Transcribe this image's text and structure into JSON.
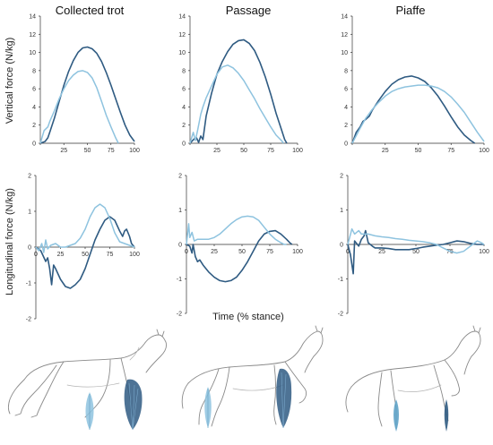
{
  "figure": {
    "columns": [
      "Collected trot",
      "Passage",
      "Piaffe"
    ],
    "xlabel": "Time (% stance)",
    "vertical_ylabel": "Vertical force (N/kg)",
    "longitudinal_ylabel": "Longitudinal force (N/kg)"
  },
  "colors": {
    "dark_series": "#2f5b82",
    "light_series": "#8ec3df"
  },
  "chart_data": [
    {
      "type": "line",
      "panel": "Collected trot",
      "ylabel": "Vertical force (N/kg)",
      "xlim": [
        0,
        100
      ],
      "ylim": [
        0,
        14
      ],
      "xticks": [
        0,
        25,
        50,
        75,
        100
      ],
      "yticks": [
        0,
        2,
        4,
        6,
        8,
        10,
        12,
        14
      ],
      "series": [
        {
          "color": "dark",
          "x": [
            0,
            5,
            8,
            10,
            15,
            20,
            25,
            30,
            35,
            40,
            45,
            50,
            55,
            60,
            65,
            70,
            75,
            80,
            85,
            90,
            95,
            100
          ],
          "y": [
            0,
            0.2,
            0.6,
            1.2,
            2.8,
            4.6,
            6.4,
            7.9,
            9.1,
            10.0,
            10.5,
            10.6,
            10.4,
            9.9,
            9.0,
            7.8,
            6.4,
            4.9,
            3.4,
            2.0,
            0.9,
            0.2
          ]
        },
        {
          "color": "light",
          "x": [
            0,
            4,
            8,
            10,
            15,
            20,
            25,
            30,
            35,
            40,
            45,
            50,
            55,
            60,
            65,
            70,
            75,
            80,
            83
          ],
          "y": [
            0,
            1.4,
            1.8,
            2.4,
            3.6,
            4.9,
            6.0,
            6.9,
            7.5,
            7.9,
            8.0,
            7.8,
            7.2,
            6.1,
            4.6,
            3.1,
            1.8,
            0.6,
            0
          ]
        }
      ]
    },
    {
      "type": "line",
      "panel": "Passage",
      "ylabel": "",
      "xlim": [
        0,
        100
      ],
      "ylim": [
        0,
        14
      ],
      "xticks": [
        0,
        25,
        50,
        75,
        100
      ],
      "yticks": [
        0,
        2,
        4,
        6,
        8,
        10,
        12,
        14
      ],
      "series": [
        {
          "color": "dark",
          "x": [
            0,
            4,
            6,
            8,
            10,
            12,
            15,
            20,
            25,
            30,
            35,
            40,
            45,
            50,
            55,
            60,
            65,
            70,
            75,
            80,
            85,
            88,
            90
          ],
          "y": [
            0,
            0.5,
            0.6,
            0.1,
            0.8,
            0.4,
            3.0,
            5.5,
            7.6,
            9.0,
            10.1,
            10.9,
            11.3,
            11.4,
            11.0,
            10.2,
            8.9,
            7.3,
            5.4,
            3.3,
            1.5,
            0.4,
            0
          ]
        },
        {
          "color": "light",
          "x": [
            0,
            3,
            5,
            7,
            10,
            12,
            15,
            20,
            25,
            30,
            35,
            40,
            45,
            50,
            55,
            60,
            65,
            70,
            75,
            80,
            85,
            87
          ],
          "y": [
            0,
            1.2,
            0.3,
            1.4,
            3.2,
            4.0,
            5.0,
            6.3,
            7.6,
            8.4,
            8.6,
            8.3,
            7.7,
            6.9,
            5.9,
            4.9,
            3.8,
            2.8,
            1.8,
            0.9,
            0.3,
            0
          ]
        }
      ]
    },
    {
      "type": "line",
      "panel": "Piaffe",
      "ylabel": "",
      "xlim": [
        0,
        100
      ],
      "ylim": [
        0,
        14
      ],
      "xticks": [
        0,
        25,
        50,
        75,
        100
      ],
      "yticks": [
        0,
        2,
        4,
        6,
        8,
        10,
        12,
        14
      ],
      "series": [
        {
          "color": "dark",
          "x": [
            0,
            3,
            6,
            8,
            10,
            13,
            15,
            20,
            25,
            30,
            35,
            40,
            45,
            50,
            55,
            60,
            65,
            70,
            75,
            80,
            85,
            90,
            93
          ],
          "y": [
            0,
            1.2,
            1.8,
            2.4,
            2.6,
            3.0,
            3.6,
            4.7,
            5.7,
            6.5,
            7.0,
            7.3,
            7.4,
            7.2,
            6.8,
            6.1,
            5.2,
            4.1,
            2.9,
            1.8,
            0.9,
            0.3,
            0
          ]
        },
        {
          "color": "light",
          "x": [
            0,
            5,
            10,
            15,
            20,
            25,
            30,
            35,
            40,
            45,
            50,
            55,
            60,
            65,
            70,
            75,
            80,
            85,
            90,
            95,
            100
          ],
          "y": [
            0,
            1.4,
            2.7,
            3.7,
            4.5,
            5.2,
            5.7,
            6.0,
            6.2,
            6.3,
            6.4,
            6.4,
            6.3,
            6.1,
            5.7,
            5.1,
            4.3,
            3.4,
            2.3,
            1.2,
            0.2
          ]
        }
      ]
    },
    {
      "type": "line",
      "panel": "Collected trot",
      "ylabel": "Longitudinal force (N/kg)",
      "xlim": [
        0,
        100
      ],
      "ylim": [
        -2,
        2
      ],
      "xticks": [
        0,
        25,
        50,
        75,
        100
      ],
      "yticks": [
        -2,
        -1,
        0,
        1,
        2
      ],
      "series": [
        {
          "color": "dark",
          "x": [
            0,
            5,
            10,
            12,
            14,
            16,
            18,
            20,
            25,
            30,
            35,
            40,
            45,
            50,
            55,
            60,
            65,
            70,
            75,
            80,
            85,
            88,
            90,
            92,
            95,
            97,
            100
          ],
          "y": [
            0,
            -0.1,
            -0.4,
            -0.3,
            -0.6,
            -1.05,
            -0.5,
            -0.6,
            -0.9,
            -1.1,
            -1.15,
            -1.05,
            -0.9,
            -0.6,
            -0.2,
            0.2,
            0.5,
            0.75,
            0.85,
            0.75,
            0.45,
            0.3,
            0.45,
            0.5,
            0.3,
            0.1,
            0
          ]
        },
        {
          "color": "light",
          "x": [
            0,
            3,
            6,
            8,
            10,
            12,
            15,
            20,
            25,
            30,
            35,
            40,
            45,
            50,
            55,
            60,
            65,
            70,
            75,
            80,
            85,
            90,
            95,
            100
          ],
          "y": [
            0,
            -0.1,
            0.1,
            -0.15,
            0.2,
            -0.05,
            0.05,
            0.1,
            0.0,
            0.0,
            0.05,
            0.1,
            0.25,
            0.5,
            0.85,
            1.1,
            1.2,
            1.1,
            0.8,
            0.4,
            0.15,
            0.1,
            0.05,
            0
          ]
        }
      ]
    },
    {
      "type": "line",
      "panel": "Passage",
      "ylabel": "",
      "xlim": [
        0,
        100
      ],
      "ylim": [
        -2,
        2
      ],
      "xticks": [
        0,
        25,
        50,
        75,
        100
      ],
      "yticks": [
        -2,
        -1,
        0,
        1,
        2
      ],
      "series": [
        {
          "color": "dark",
          "x": [
            0,
            3,
            5,
            6,
            8,
            10,
            12,
            15,
            20,
            25,
            30,
            35,
            40,
            45,
            50,
            55,
            60,
            65,
            70,
            75,
            80,
            85,
            90,
            93,
            95
          ],
          "y": [
            0,
            -0.05,
            -0.25,
            0.0,
            -0.35,
            -0.5,
            -0.45,
            -0.6,
            -0.8,
            -0.95,
            -1.05,
            -1.08,
            -1.05,
            -0.95,
            -0.75,
            -0.5,
            -0.2,
            0.1,
            0.3,
            0.38,
            0.4,
            0.3,
            0.15,
            0.05,
            0
          ]
        },
        {
          "color": "light",
          "x": [
            0,
            2,
            3,
            5,
            7,
            10,
            15,
            20,
            25,
            30,
            35,
            40,
            45,
            50,
            55,
            60,
            65,
            70,
            75,
            80,
            85,
            88,
            90
          ],
          "y": [
            0,
            0.6,
            0.2,
            0.35,
            0.1,
            0.15,
            0.15,
            0.15,
            0.2,
            0.3,
            0.45,
            0.6,
            0.72,
            0.8,
            0.82,
            0.8,
            0.7,
            0.5,
            0.3,
            0.15,
            0.05,
            0.0,
            0
          ]
        }
      ]
    },
    {
      "type": "line",
      "panel": "Piaffe",
      "ylabel": "",
      "xlim": [
        0,
        100
      ],
      "ylim": [
        -2,
        2
      ],
      "xticks": [
        0,
        25,
        50,
        75,
        100
      ],
      "yticks": [
        -2,
        -1,
        0,
        1,
        2
      ],
      "series": [
        {
          "color": "dark",
          "x": [
            0,
            2,
            4,
            5,
            8,
            10,
            12,
            13,
            15,
            18,
            20,
            25,
            30,
            35,
            40,
            45,
            50,
            55,
            60,
            65,
            70,
            75,
            80,
            85,
            90,
            95,
            100
          ],
          "y": [
            0,
            -0.3,
            -0.85,
            0.1,
            -0.05,
            0.15,
            0.25,
            0.4,
            0.05,
            -0.05,
            -0.1,
            -0.1,
            -0.12,
            -0.15,
            -0.15,
            -0.15,
            -0.12,
            -0.08,
            -0.05,
            -0.02,
            0.0,
            0.05,
            0.1,
            0.08,
            0.03,
            0.0,
            0
          ]
        },
        {
          "color": "light",
          "x": [
            0,
            3,
            5,
            8,
            10,
            15,
            20,
            25,
            30,
            35,
            40,
            45,
            50,
            55,
            60,
            65,
            70,
            75,
            80,
            85,
            90,
            95,
            98,
            100
          ],
          "y": [
            0,
            0.45,
            0.3,
            0.4,
            0.3,
            0.3,
            0.25,
            0.22,
            0.2,
            0.17,
            0.15,
            0.12,
            0.1,
            0.08,
            0.05,
            0.0,
            -0.1,
            -0.2,
            -0.25,
            -0.2,
            -0.05,
            0.1,
            0.05,
            0
          ]
        }
      ]
    }
  ]
}
